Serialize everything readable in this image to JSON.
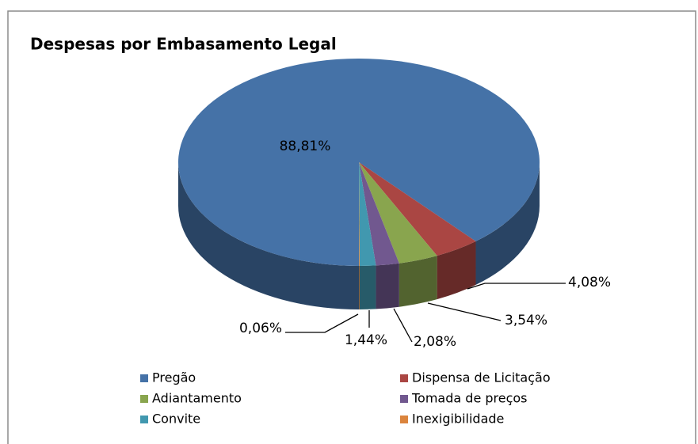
{
  "chart_data": {
    "type": "pie",
    "title": "Despesas por Embasamento Legal",
    "categories": [
      "Pregão",
      "Dispensa de Licitação",
      "Adiantamento",
      "Tomada de preços",
      "Convite",
      "Inexigibilidade"
    ],
    "values": [
      88.81,
      4.08,
      3.54,
      2.08,
      1.44,
      0.06
    ],
    "value_labels": [
      "88,81%",
      "4,08%",
      "3,54%",
      "2,08%",
      "1,44%",
      "0,06%"
    ],
    "colors": [
      "#4572a7",
      "#aa4643",
      "#89a54e",
      "#71588f",
      "#4198af",
      "#db843d"
    ],
    "legend": "bottom"
  }
}
